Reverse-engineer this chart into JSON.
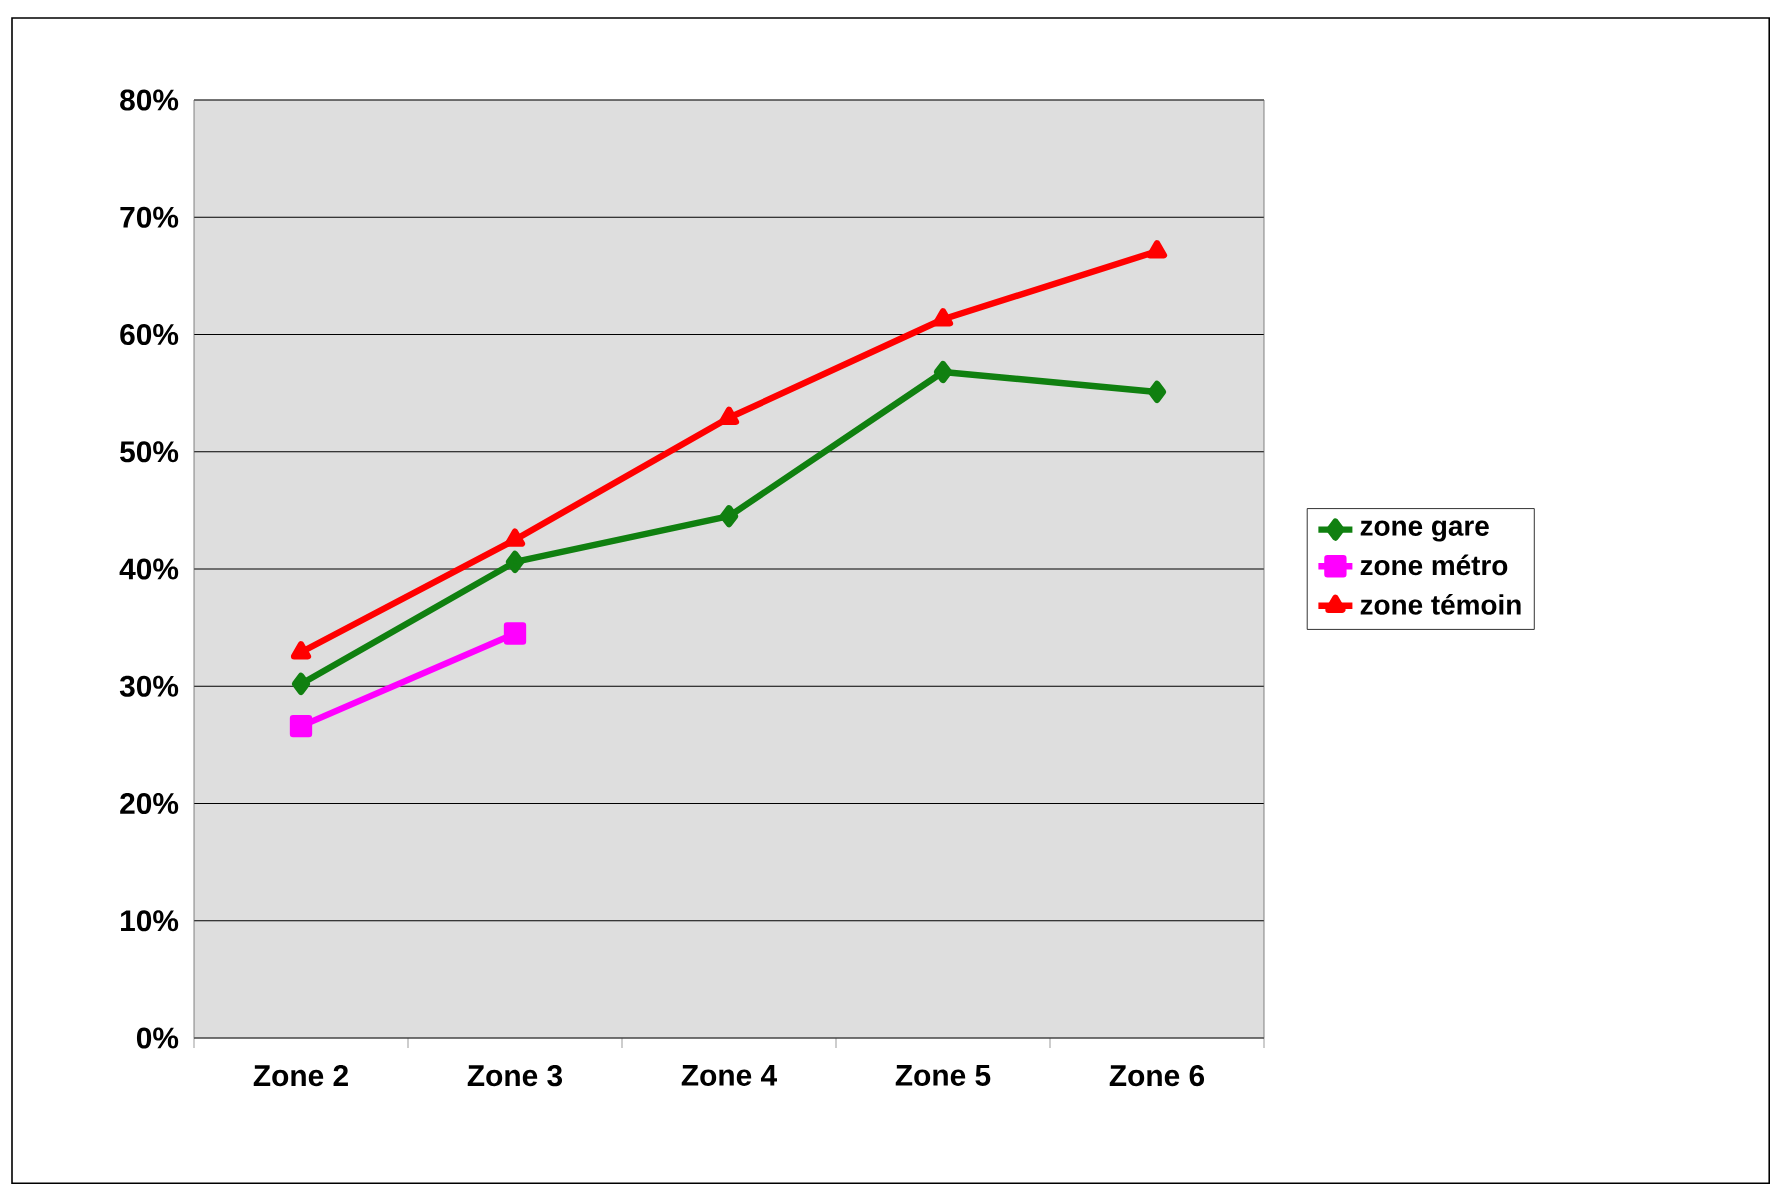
{
  "chart_data": {
    "type": "line",
    "categories": [
      "Zone 2",
      "Zone 3",
      "Zone 4",
      "Zone 5",
      "Zone 6"
    ],
    "series": [
      {
        "name": "zone gare",
        "color": "#108010",
        "marker": "diamond",
        "values": [
          30.2,
          40.6,
          44.5,
          56.8,
          55.1
        ]
      },
      {
        "name": "zone métro",
        "color": "#ff00ff",
        "marker": "square",
        "values": [
          26.6,
          34.5,
          null,
          null,
          null
        ]
      },
      {
        "name": "zone témoin",
        "color": "#ff0000",
        "marker": "triangle",
        "values": [
          32.9,
          42.5,
          52.9,
          61.3,
          67.1
        ]
      }
    ],
    "ylim": [
      0,
      80
    ],
    "yticks": [
      {
        "value": 0,
        "label": "0%"
      },
      {
        "value": 10,
        "label": "10%"
      },
      {
        "value": 20,
        "label": "20%"
      },
      {
        "value": 30,
        "label": "30%"
      },
      {
        "value": 40,
        "label": "40%"
      },
      {
        "value": 50,
        "label": "50%"
      },
      {
        "value": 60,
        "label": "60%"
      },
      {
        "value": 70,
        "label": "70%"
      },
      {
        "value": 80,
        "label": "80%"
      }
    ],
    "grid": "y",
    "legend": "right",
    "line_style": "solid"
  }
}
